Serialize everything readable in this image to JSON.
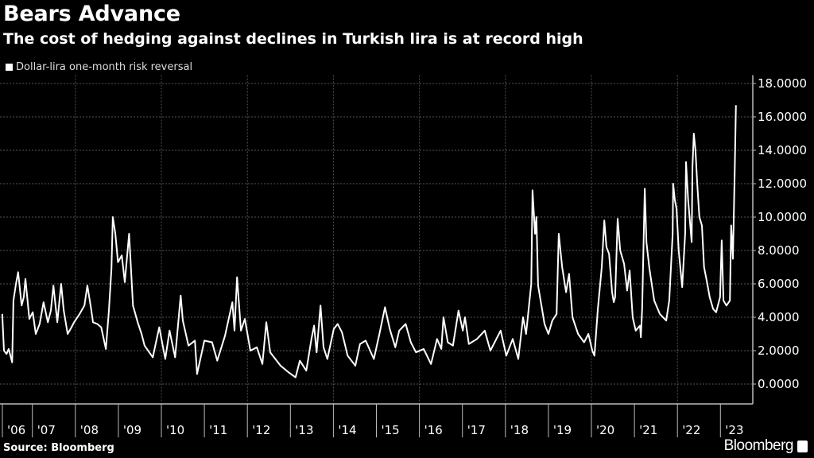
{
  "chart_data": {
    "type": "line",
    "title": "Bears Advance",
    "subtitle": "The cost of hedging against declines in Turkish lira is at record high",
    "xlabel": "",
    "ylabel": "",
    "ylim": [
      -1.2,
      18.5
    ],
    "xlim": [
      2006.24,
      2023.75
    ],
    "grid": true,
    "legend_placement": "top-left",
    "y_ticks": [
      0,
      2,
      4,
      6,
      8,
      10,
      12,
      14,
      16,
      18
    ],
    "y_tick_labels": [
      "0.0000",
      "2.0000",
      "4.0000",
      "6.0000",
      "8.0000",
      "10.0000",
      "12.0000",
      "14.0000",
      "16.0000",
      "18.0000"
    ],
    "x_ticks": [
      2006,
      2007,
      2008,
      2009,
      2010,
      2011,
      2012,
      2013,
      2014,
      2015,
      2016,
      2017,
      2018,
      2019,
      2020,
      2021,
      2022,
      2023
    ],
    "x_tick_labels": [
      "'06",
      "'07",
      "'08",
      "'09",
      "'10",
      "'11",
      "'12",
      "'13",
      "'14",
      "'15",
      "'16",
      "'17",
      "'18",
      "'19",
      "'20",
      "'21",
      "'22",
      "'23"
    ],
    "series": [
      {
        "name": "Dollar-lira one-month risk reversal",
        "color": "#ffffff",
        "points": [
          [
            2006.3,
            4.2
          ],
          [
            2006.34,
            2.0
          ],
          [
            2006.4,
            1.8
          ],
          [
            2006.45,
            2.1
          ],
          [
            2006.49,
            1.7
          ],
          [
            2006.53,
            1.3
          ],
          [
            2006.56,
            5.0
          ],
          [
            2006.62,
            6.0
          ],
          [
            2006.67,
            6.7
          ],
          [
            2006.75,
            4.7
          ],
          [
            2006.8,
            5.2
          ],
          [
            2006.84,
            6.3
          ],
          [
            2006.93,
            3.9
          ],
          [
            2007.01,
            4.3
          ],
          [
            2007.08,
            3.0
          ],
          [
            2007.17,
            3.6
          ],
          [
            2007.26,
            4.9
          ],
          [
            2007.36,
            3.7
          ],
          [
            2007.43,
            4.4
          ],
          [
            2007.49,
            5.9
          ],
          [
            2007.58,
            3.7
          ],
          [
            2007.67,
            6.0
          ],
          [
            2007.73,
            4.4
          ],
          [
            2007.82,
            3.0
          ],
          [
            2007.91,
            3.4
          ],
          [
            2007.97,
            3.7
          ],
          [
            2008.1,
            4.2
          ],
          [
            2008.21,
            4.7
          ],
          [
            2008.28,
            5.9
          ],
          [
            2008.36,
            4.6
          ],
          [
            2008.41,
            3.7
          ],
          [
            2008.51,
            3.6
          ],
          [
            2008.6,
            3.4
          ],
          [
            2008.71,
            2.1
          ],
          [
            2008.78,
            4.4
          ],
          [
            2008.84,
            6.9
          ],
          [
            2008.87,
            10.0
          ],
          [
            2008.93,
            9.0
          ],
          [
            2008.99,
            7.3
          ],
          [
            2009.08,
            7.7
          ],
          [
            2009.15,
            6.1
          ],
          [
            2009.25,
            9.0
          ],
          [
            2009.34,
            4.7
          ],
          [
            2009.45,
            3.7
          ],
          [
            2009.54,
            3.0
          ],
          [
            2009.61,
            2.3
          ],
          [
            2009.8,
            1.6
          ],
          [
            2009.95,
            3.4
          ],
          [
            2010.09,
            1.5
          ],
          [
            2010.19,
            3.2
          ],
          [
            2010.32,
            1.6
          ],
          [
            2010.45,
            5.3
          ],
          [
            2010.5,
            3.8
          ],
          [
            2010.63,
            2.3
          ],
          [
            2010.78,
            2.6
          ],
          [
            2010.83,
            0.6
          ],
          [
            2011.0,
            2.6
          ],
          [
            2011.18,
            2.5
          ],
          [
            2011.3,
            1.4
          ],
          [
            2011.48,
            2.9
          ],
          [
            2011.65,
            4.9
          ],
          [
            2011.7,
            3.2
          ],
          [
            2011.76,
            6.4
          ],
          [
            2011.85,
            3.2
          ],
          [
            2011.94,
            3.9
          ],
          [
            2012.07,
            2.0
          ],
          [
            2012.22,
            2.2
          ],
          [
            2012.35,
            1.2
          ],
          [
            2012.44,
            3.7
          ],
          [
            2012.53,
            1.9
          ],
          [
            2012.77,
            1.1
          ],
          [
            2012.96,
            0.7
          ],
          [
            2013.12,
            0.4
          ],
          [
            2013.22,
            1.4
          ],
          [
            2013.37,
            0.8
          ],
          [
            2013.49,
            2.7
          ],
          [
            2013.55,
            3.5
          ],
          [
            2013.61,
            1.9
          ],
          [
            2013.7,
            4.7
          ],
          [
            2013.77,
            2.2
          ],
          [
            2013.86,
            1.5
          ],
          [
            2014.01,
            3.3
          ],
          [
            2014.1,
            3.6
          ],
          [
            2014.2,
            3.1
          ],
          [
            2014.33,
            1.7
          ],
          [
            2014.51,
            1.1
          ],
          [
            2014.62,
            2.4
          ],
          [
            2014.75,
            2.6
          ],
          [
            2014.94,
            1.5
          ],
          [
            2015.07,
            3.0
          ],
          [
            2015.2,
            4.6
          ],
          [
            2015.31,
            3.3
          ],
          [
            2015.44,
            2.2
          ],
          [
            2015.53,
            3.2
          ],
          [
            2015.68,
            3.6
          ],
          [
            2015.8,
            2.5
          ],
          [
            2015.92,
            1.9
          ],
          [
            2016.1,
            2.1
          ],
          [
            2016.27,
            1.2
          ],
          [
            2016.41,
            2.7
          ],
          [
            2016.51,
            2.1
          ],
          [
            2016.56,
            4.0
          ],
          [
            2016.66,
            2.5
          ],
          [
            2016.78,
            2.3
          ],
          [
            2016.91,
            4.4
          ],
          [
            2017.01,
            3.2
          ],
          [
            2017.06,
            4.0
          ],
          [
            2017.15,
            2.4
          ],
          [
            2017.34,
            2.7
          ],
          [
            2017.52,
            3.2
          ],
          [
            2017.65,
            2.0
          ],
          [
            2017.89,
            3.2
          ],
          [
            2018.02,
            1.7
          ],
          [
            2018.17,
            2.7
          ],
          [
            2018.3,
            1.5
          ],
          [
            2018.41,
            4.0
          ],
          [
            2018.48,
            3.0
          ],
          [
            2018.6,
            6.0
          ],
          [
            2018.63,
            11.6
          ],
          [
            2018.69,
            9.0
          ],
          [
            2018.72,
            10.0
          ],
          [
            2018.76,
            5.9
          ],
          [
            2018.91,
            3.6
          ],
          [
            2019.0,
            3.0
          ],
          [
            2019.09,
            3.8
          ],
          [
            2019.19,
            4.2
          ],
          [
            2019.24,
            9.0
          ],
          [
            2019.32,
            7.0
          ],
          [
            2019.41,
            5.5
          ],
          [
            2019.48,
            6.6
          ],
          [
            2019.56,
            4.0
          ],
          [
            2019.69,
            3.0
          ],
          [
            2019.83,
            2.5
          ],
          [
            2019.93,
            3.0
          ],
          [
            2020.02,
            2.0
          ],
          [
            2020.07,
            1.7
          ],
          [
            2020.15,
            4.5
          ],
          [
            2020.24,
            7.0
          ],
          [
            2020.3,
            9.8
          ],
          [
            2020.35,
            8.2
          ],
          [
            2020.41,
            7.8
          ],
          [
            2020.48,
            5.5
          ],
          [
            2020.52,
            4.9
          ],
          [
            2020.55,
            5.2
          ],
          [
            2020.61,
            9.9
          ],
          [
            2020.67,
            8.0
          ],
          [
            2020.76,
            7.2
          ],
          [
            2020.83,
            5.6
          ],
          [
            2020.89,
            6.8
          ],
          [
            2020.96,
            4.0
          ],
          [
            2021.03,
            3.2
          ],
          [
            2021.13,
            3.5
          ],
          [
            2021.15,
            2.8
          ],
          [
            2021.18,
            4.5
          ],
          [
            2021.24,
            11.7
          ],
          [
            2021.28,
            8.5
          ],
          [
            2021.35,
            6.9
          ],
          [
            2021.46,
            5.0
          ],
          [
            2021.59,
            4.2
          ],
          [
            2021.74,
            3.8
          ],
          [
            2021.81,
            5.0
          ],
          [
            2021.89,
            9.0
          ],
          [
            2021.9,
            12.0
          ],
          [
            2021.94,
            11.0
          ],
          [
            2021.98,
            10.5
          ],
          [
            2022.03,
            8.0
          ],
          [
            2022.11,
            5.8
          ],
          [
            2022.18,
            9.0
          ],
          [
            2022.2,
            13.3
          ],
          [
            2022.25,
            11.0
          ],
          [
            2022.33,
            8.5
          ],
          [
            2022.35,
            13.0
          ],
          [
            2022.38,
            15.0
          ],
          [
            2022.42,
            14.0
          ],
          [
            2022.46,
            12.0
          ],
          [
            2022.51,
            10.0
          ],
          [
            2022.57,
            9.5
          ],
          [
            2022.62,
            7.0
          ],
          [
            2022.68,
            6.2
          ],
          [
            2022.75,
            5.2
          ],
          [
            2022.83,
            4.5
          ],
          [
            2022.9,
            4.3
          ],
          [
            2022.99,
            5.2
          ],
          [
            2023.03,
            8.6
          ],
          [
            2023.07,
            5.0
          ],
          [
            2023.14,
            4.7
          ],
          [
            2023.22,
            5.0
          ],
          [
            2023.25,
            9.5
          ],
          [
            2023.29,
            7.5
          ],
          [
            2023.33,
            12.6
          ],
          [
            2023.36,
            16.7
          ]
        ]
      }
    ]
  },
  "legend": {
    "label": "Dollar-lira one-month risk reversal"
  },
  "footer": {
    "source": "Source: Bloomberg",
    "brand": "Bloomberg"
  },
  "colors": {
    "background": "#000000",
    "line": "#ffffff",
    "grid": "#555555",
    "axis": "#bbbbbb"
  }
}
